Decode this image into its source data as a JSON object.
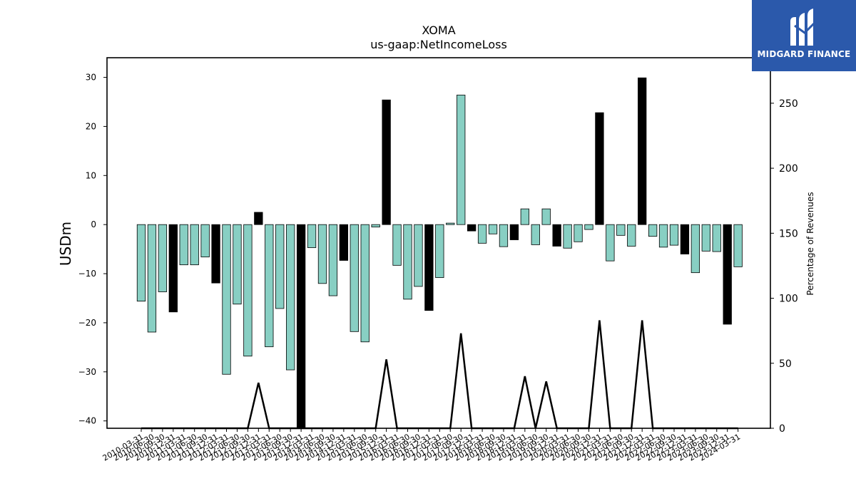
{
  "logo": {
    "text": "MIDGARD FINANCE",
    "icon": "midgard-m-logo-icon"
  },
  "colors": {
    "positive_bar": "#88cfc3",
    "negative_bar": "#000000",
    "line": "#000000",
    "axes": "#000000",
    "logo_bg": "#2b59ab"
  },
  "chart_data": {
    "type": "bar",
    "title": "XOMA",
    "subtitle": "us-gaap:NetIncomeLoss",
    "ylabel": "USDm",
    "y2label": "Percentage of Revenues",
    "ylim": [
      -41.5,
      34
    ],
    "y2lim": [
      0,
      285
    ],
    "yticks": [
      30,
      20,
      10,
      0,
      -10,
      -20,
      -30,
      -40
    ],
    "yticklabels": [
      "30",
      "20",
      "10",
      "0",
      "−10",
      "−20",
      "−30",
      "−40"
    ],
    "y2ticks": [
      250,
      200,
      150,
      100,
      50,
      0
    ],
    "y2ticklabels": [
      "250",
      "200",
      "150",
      "100",
      "50",
      "0"
    ],
    "grid": false,
    "categories": [
      "2010-03-31",
      "2010-06-30",
      "2010-09-30",
      "2010-12-31",
      "2011-03-31",
      "2011-06-30",
      "2011-09-30",
      "2011-12-31",
      "2012-03-31",
      "2012-06-30",
      "2012-09-30",
      "2012-12-31",
      "2013-03-31",
      "2013-06-30",
      "2013-09-30",
      "2013-12-31",
      "2014-03-31",
      "2014-06-30",
      "2014-09-30",
      "2014-12-31",
      "2015-03-31",
      "2015-06-30",
      "2015-09-30",
      "2015-12-31",
      "2016-03-31",
      "2016-06-30",
      "2016-09-30",
      "2016-12-31",
      "2017-03-31",
      "2017-06-30",
      "2017-09-30",
      "2017-12-31",
      "2018-03-31",
      "2018-06-30",
      "2018-09-30",
      "2018-12-31",
      "2019-03-31",
      "2019-06-30",
      "2019-09-30",
      "2019-12-31",
      "2020-03-31",
      "2020-06-30",
      "2020-09-30",
      "2020-12-31",
      "2021-03-31",
      "2021-06-30",
      "2021-09-30",
      "2021-12-31",
      "2022-03-31",
      "2022-06-30",
      "2022-09-30",
      "2022-12-31",
      "2023-03-31",
      "2023-06-30",
      "2023-09-30",
      "2023-12-31",
      "2024-03-31"
    ],
    "values": [
      -15.6,
      -21.9,
      -13.7,
      -17.8,
      -8.2,
      -8.2,
      -6.6,
      -11.9,
      -30.5,
      -16.2,
      -26.8,
      2.5,
      -24.9,
      -17.1,
      -29.6,
      -42.5,
      -4.7,
      -12.0,
      -14.5,
      -7.3,
      -21.8,
      -23.9,
      -0.5,
      25.4,
      -8.3,
      -15.2,
      -12.6,
      -17.5,
      -10.8,
      0.3,
      26.4,
      -1.3,
      -3.8,
      -1.9,
      -4.5,
      -3.1,
      3.2,
      -4.1,
      3.2,
      -4.4,
      -4.8,
      -3.5,
      -1.0,
      22.8,
      -7.4,
      -2.2,
      -4.4,
      29.9,
      -2.4,
      -4.6,
      -4.2,
      -6.0,
      -9.8,
      -5.4,
      -5.5,
      -20.3,
      -8.6
    ],
    "highlighted": [
      false,
      false,
      false,
      true,
      false,
      false,
      false,
      true,
      false,
      false,
      false,
      true,
      false,
      false,
      false,
      true,
      false,
      false,
      false,
      true,
      false,
      false,
      false,
      true,
      false,
      false,
      false,
      true,
      false,
      false,
      false,
      true,
      false,
      false,
      false,
      true,
      false,
      false,
      false,
      true,
      false,
      false,
      false,
      true,
      false,
      false,
      false,
      true,
      false,
      false,
      false,
      true,
      false,
      false,
      false,
      true,
      false
    ],
    "series2": {
      "name": "",
      "values": [
        0,
        0,
        0,
        0,
        0,
        0,
        0,
        0,
        0,
        0,
        0,
        35,
        0,
        0,
        0,
        0,
        0,
        0,
        0,
        0,
        0,
        0,
        0,
        53,
        0,
        0,
        0,
        0,
        0,
        0,
        73,
        0,
        0,
        0,
        0,
        0,
        40,
        0,
        36,
        0,
        0,
        0,
        0,
        83,
        0,
        0,
        0,
        83,
        0,
        0,
        0,
        0,
        0,
        0,
        0,
        0,
        0
      ]
    }
  }
}
